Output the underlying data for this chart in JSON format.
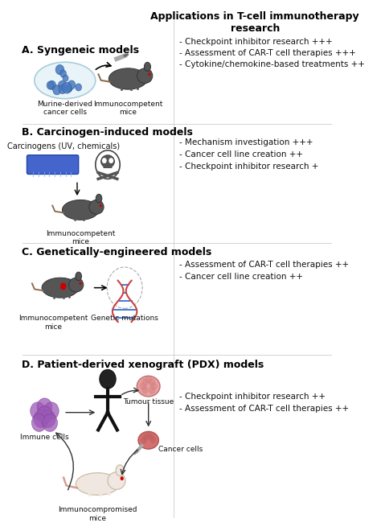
{
  "title": "Applications in T-cell immunotherapy\nresearch",
  "bg_color": "#ffffff",
  "section_A_header": "A. Syngeneic models",
  "section_B_header": "B. Carcinogen-induced models",
  "section_C_header": "C. Genetically-engineered models",
  "section_D_header": "D. Patient-derived xenograft (PDX) models",
  "section_A_sub1": "Murine-derived\ncancer cells",
  "section_A_sub2": "Immunocompetent\nmice",
  "section_B_sub1": "Carcinogens (UV, chemicals)",
  "section_B_sub2": "Immunocompetent\nmice",
  "section_C_sub1": "Immunocompetent\nmice",
  "section_C_sub2": "Genetic mutations",
  "section_D_sub1": "Immune cells",
  "section_D_sub2": "Tumour tissue",
  "section_D_sub3": "Cancer cells",
  "section_D_sub4": "Immunocompromised\nmice",
  "apps_A": "- Checkpoint inhibitor research +++\n- Assessment of CAR-T cell therapies +++\n- Cytokine/chemokine-based treatments ++",
  "apps_B": "- Mechanism investigation +++\n- Cancer cell line creation ++\n- Checkpoint inhibitor research +",
  "apps_C": "- Assessment of CAR-T cell therapies ++\n- Cancer cell line creation ++",
  "apps_D": "- Checkpoint inhibitor research ++\n- Assessment of CAR-T cell therapies ++",
  "header_fontsize": 9,
  "text_fontsize": 7.5,
  "sub_fontsize": 6.5,
  "title_fontsize": 9,
  "divider_color": "#cccccc",
  "text_color": "#111111",
  "header_color": "#000000",
  "light_gray": "#dddddd",
  "blue_color": "#4a7abf",
  "purple_color": "#9b59b6",
  "pink_color": "#e8a0a0",
  "dark_brown": "#5a3d2b",
  "mouse_color": "#555555",
  "white_mouse_color": "#f0e8e0"
}
